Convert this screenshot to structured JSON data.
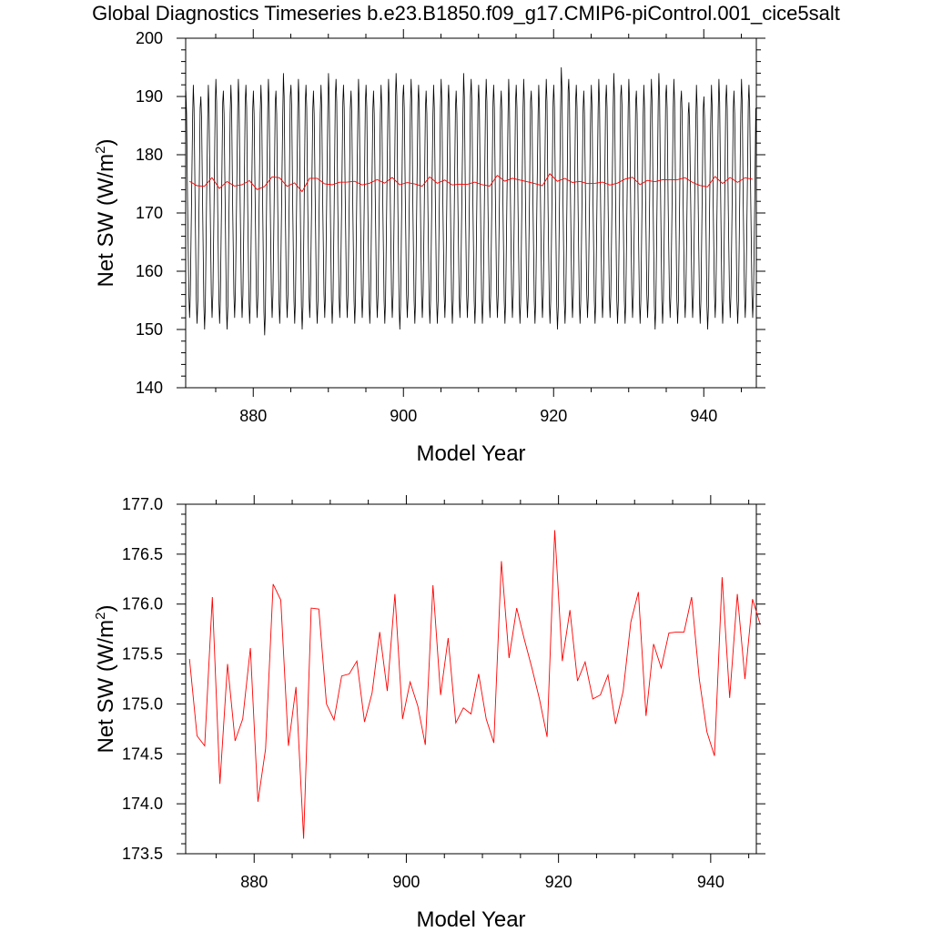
{
  "title": "Global Diagnostics Timeseries b.e23.B1850.f09_g17.CMIP6-piControl.001_cice5salt",
  "colors": {
    "monthly": "#000000",
    "annual": "#ff0000",
    "frame": "#000000"
  },
  "chart_data": [
    {
      "type": "line",
      "title": "",
      "xlabel": "Model Year",
      "ylabel_main": "Net SW (W/m",
      "ylabel_sup": "2",
      "ylabel_close": ")",
      "xlim": [
        871,
        947
      ],
      "ylim": [
        140,
        200
      ],
      "xticks": [
        880,
        900,
        920,
        940
      ],
      "xtick_labels": [
        "880",
        "900",
        "920",
        "940"
      ],
      "yticks": [
        140,
        150,
        160,
        170,
        180,
        190,
        200
      ],
      "ytick_labels": [
        "140",
        "150",
        "160",
        "170",
        "180",
        "190",
        "200"
      ],
      "monthly_cycle": {
        "start_year": 871,
        "years": 76,
        "peak_values": [
          191,
          192,
          190,
          192,
          193,
          191,
          192,
          193,
          192,
          191,
          192,
          193,
          191,
          194,
          192,
          193,
          192,
          191,
          192,
          194,
          193,
          192,
          191,
          193,
          192,
          191,
          192,
          193,
          194,
          192,
          193,
          192,
          191,
          192,
          193,
          192,
          191,
          194,
          193,
          192,
          193,
          192,
          191,
          193,
          192,
          193,
          191,
          192,
          193,
          192,
          195,
          193,
          192,
          191,
          192,
          193,
          192,
          194,
          192,
          193,
          191,
          192,
          193,
          194,
          192,
          193,
          191,
          189,
          192,
          190,
          192,
          193,
          192,
          191,
          193,
          192
        ],
        "trough_values": [
          152,
          151,
          150,
          152,
          151,
          150,
          152,
          152,
          151,
          152,
          149,
          152,
          151,
          152,
          151,
          150,
          152,
          151,
          152,
          151,
          152,
          152,
          151,
          152,
          151,
          152,
          151,
          152,
          150,
          152,
          151,
          152,
          151,
          151,
          152,
          151,
          152,
          152,
          151,
          151,
          152,
          152,
          151,
          152,
          151,
          152,
          151,
          152,
          151,
          150,
          151,
          152,
          151,
          152,
          151,
          152,
          152,
          151,
          151,
          152,
          151,
          152,
          150,
          151,
          152,
          151,
          152,
          152,
          151,
          150,
          152,
          151,
          152,
          151,
          152,
          152
        ]
      },
      "series": [
        {
          "name": "",
          "color": "#ff0000",
          "x": [
            871,
            872,
            873,
            874,
            875,
            876,
            877,
            878,
            879,
            880,
            881,
            882,
            883,
            884,
            885,
            886,
            887,
            888,
            889,
            890,
            891,
            892,
            893,
            894,
            895,
            896,
            897,
            898,
            899,
            900,
            901,
            902,
            903,
            904,
            905,
            906,
            907,
            908,
            909,
            910,
            911,
            912,
            913,
            914,
            915,
            916,
            917,
            918,
            919,
            920,
            921,
            922,
            923,
            924,
            925,
            926,
            927,
            928,
            929,
            930,
            931,
            932,
            933,
            934,
            935,
            936,
            937,
            938,
            939,
            940,
            941,
            942,
            943,
            944,
            945,
            946
          ],
          "values": [
            175.45,
            174.68,
            174.58,
            176.07,
            174.2,
            175.4,
            174.63,
            174.85,
            175.56,
            174.02,
            174.55,
            176.2,
            176.04,
            174.58,
            175.17,
            173.65,
            175.96,
            175.95,
            175.0,
            174.84,
            175.28,
            175.3,
            175.43,
            174.82,
            175.11,
            175.72,
            175.13,
            176.1,
            174.85,
            175.22,
            174.98,
            174.59,
            176.19,
            175.09,
            175.66,
            174.81,
            174.96,
            174.9,
            175.3,
            174.85,
            174.61,
            176.43,
            175.46,
            175.96,
            175.65,
            175.36,
            175.05,
            174.67,
            176.74,
            175.43,
            175.94,
            175.23,
            175.42,
            175.05,
            175.09,
            175.29,
            174.8,
            175.13,
            175.82,
            176.12,
            174.88,
            175.6,
            175.36,
            175.71,
            175.72,
            175.72,
            176.07,
            175.25,
            174.72,
            174.48,
            176.27,
            175.06,
            176.1,
            175.25,
            176.05,
            175.8
          ]
        }
      ]
    },
    {
      "type": "line",
      "title": "",
      "xlabel": "Model Year",
      "ylabel_main": "Net SW (W/m",
      "ylabel_sup": "2",
      "ylabel_close": ")",
      "xlim": [
        871,
        946
      ],
      "ylim": [
        173.5,
        177.0
      ],
      "xticks": [
        880,
        900,
        920,
        940
      ],
      "xtick_labels": [
        "880",
        "900",
        "920",
        "940"
      ],
      "yticks": [
        173.5,
        174.0,
        174.5,
        175.0,
        175.5,
        176.0,
        176.5,
        177.0
      ],
      "ytick_labels": [
        "173.5",
        "174.0",
        "174.5",
        "175.0",
        "175.5",
        "176.0",
        "176.5",
        "177.0"
      ],
      "series": [
        {
          "name": "",
          "color": "#ff0000",
          "x": [
            871,
            872,
            873,
            874,
            875,
            876,
            877,
            878,
            879,
            880,
            881,
            882,
            883,
            884,
            885,
            886,
            887,
            888,
            889,
            890,
            891,
            892,
            893,
            894,
            895,
            896,
            897,
            898,
            899,
            900,
            901,
            902,
            903,
            904,
            905,
            906,
            907,
            908,
            909,
            910,
            911,
            912,
            913,
            914,
            915,
            916,
            917,
            918,
            919,
            920,
            921,
            922,
            923,
            924,
            925,
            926,
            927,
            928,
            929,
            930,
            931,
            932,
            933,
            934,
            935,
            936,
            937,
            938,
            939,
            940,
            941,
            942,
            943,
            944,
            945,
            946
          ],
          "values": [
            175.45,
            174.68,
            174.58,
            176.07,
            174.2,
            175.4,
            174.63,
            174.85,
            175.56,
            174.02,
            174.55,
            176.2,
            176.04,
            174.58,
            175.17,
            173.65,
            175.96,
            175.95,
            175.0,
            174.84,
            175.28,
            175.3,
            175.43,
            174.82,
            175.11,
            175.72,
            175.13,
            176.1,
            174.85,
            175.22,
            174.98,
            174.59,
            176.19,
            175.09,
            175.66,
            174.81,
            174.96,
            174.9,
            175.3,
            174.85,
            174.61,
            176.43,
            175.46,
            175.96,
            175.65,
            175.36,
            175.05,
            174.67,
            176.74,
            175.43,
            175.94,
            175.23,
            175.42,
            175.05,
            175.09,
            175.29,
            174.8,
            175.13,
            175.82,
            176.12,
            174.88,
            175.6,
            175.36,
            175.71,
            175.72,
            175.72,
            176.07,
            175.25,
            174.72,
            174.48,
            176.27,
            175.06,
            176.1,
            175.25,
            176.05,
            175.8
          ]
        }
      ]
    }
  ]
}
